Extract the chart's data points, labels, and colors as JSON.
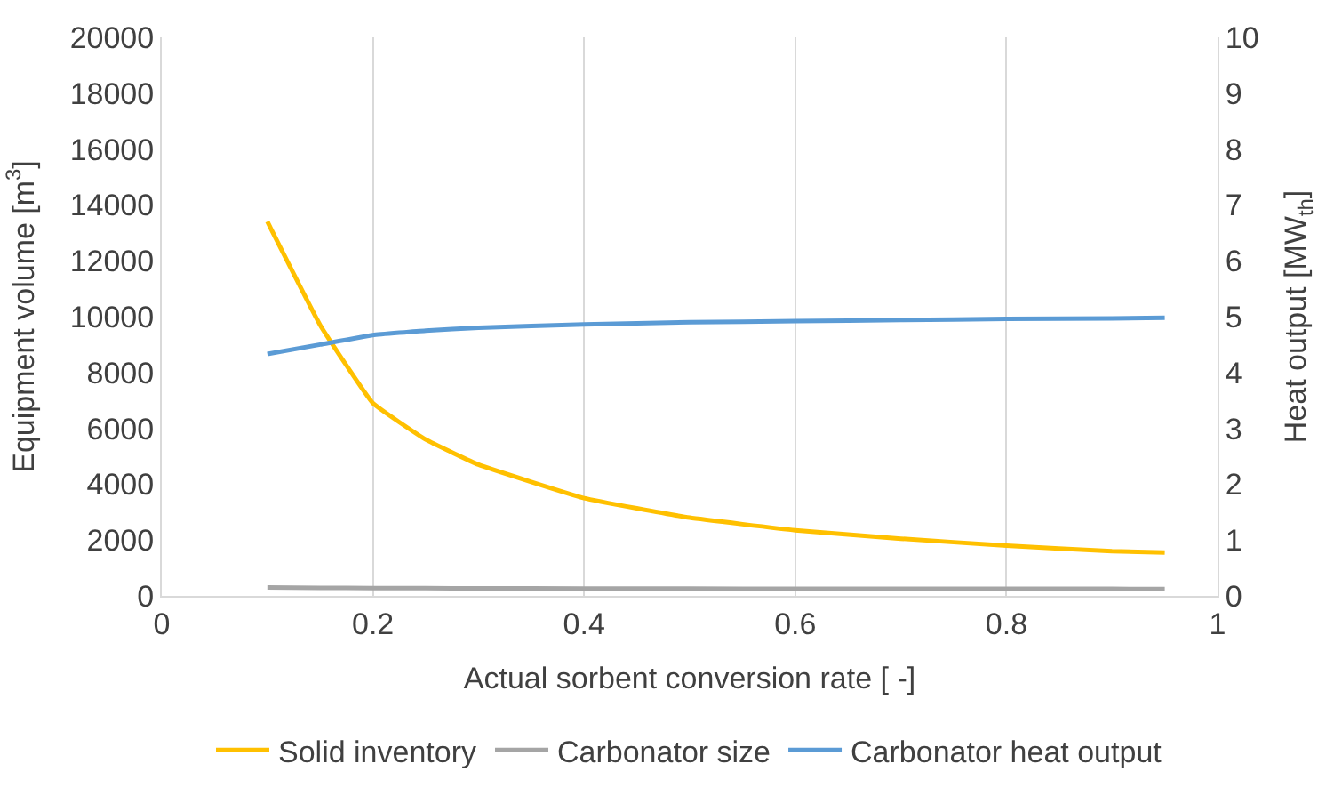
{
  "chart_data": {
    "type": "line",
    "xlabel": "Actual sorbent conversion rate [ -]",
    "ylabel": "Equipment volume [m$^{3}$]",
    "y2label": "Heat output [MW$_{th}$]",
    "x": [
      0.1,
      0.15,
      0.2,
      0.25,
      0.3,
      0.4,
      0.5,
      0.6,
      0.7,
      0.8,
      0.9,
      0.95
    ],
    "series": [
      {
        "name": "Solid inventory",
        "color": "#ffc000",
        "values": [
          13400,
          9700,
          6900,
          5600,
          4700,
          3500,
          2800,
          2350,
          2050,
          1800,
          1600,
          1550
        ]
      },
      {
        "name": "Carbonator size",
        "color": "#a5a5a5",
        "values": [
          300,
          290,
          280,
          275,
          270,
          265,
          260,
          258,
          255,
          253,
          251,
          250
        ]
      },
      {
        "name": "Carbonator heat output",
        "color": "#5b9bd5",
        "axis": "y2",
        "values": [
          4.33,
          4.5,
          4.67,
          4.75,
          4.8,
          4.86,
          4.9,
          4.92,
          4.94,
          4.96,
          4.97,
          4.98
        ]
      }
    ],
    "xlim": [
      0,
      1
    ],
    "xticks": [
      0,
      0.2,
      0.4,
      0.6,
      0.8,
      1
    ],
    "ylim": [
      0,
      20000
    ],
    "yticks": [
      0,
      2000,
      4000,
      6000,
      8000,
      10000,
      12000,
      14000,
      16000,
      18000,
      20000
    ],
    "y2lim": [
      0,
      10
    ],
    "y2ticks": [
      0,
      1,
      2,
      3,
      4,
      5,
      6,
      7,
      8,
      9,
      10
    ],
    "grid": "x",
    "legend": "bottom",
    "marker": "none",
    "line_style": "solid"
  }
}
